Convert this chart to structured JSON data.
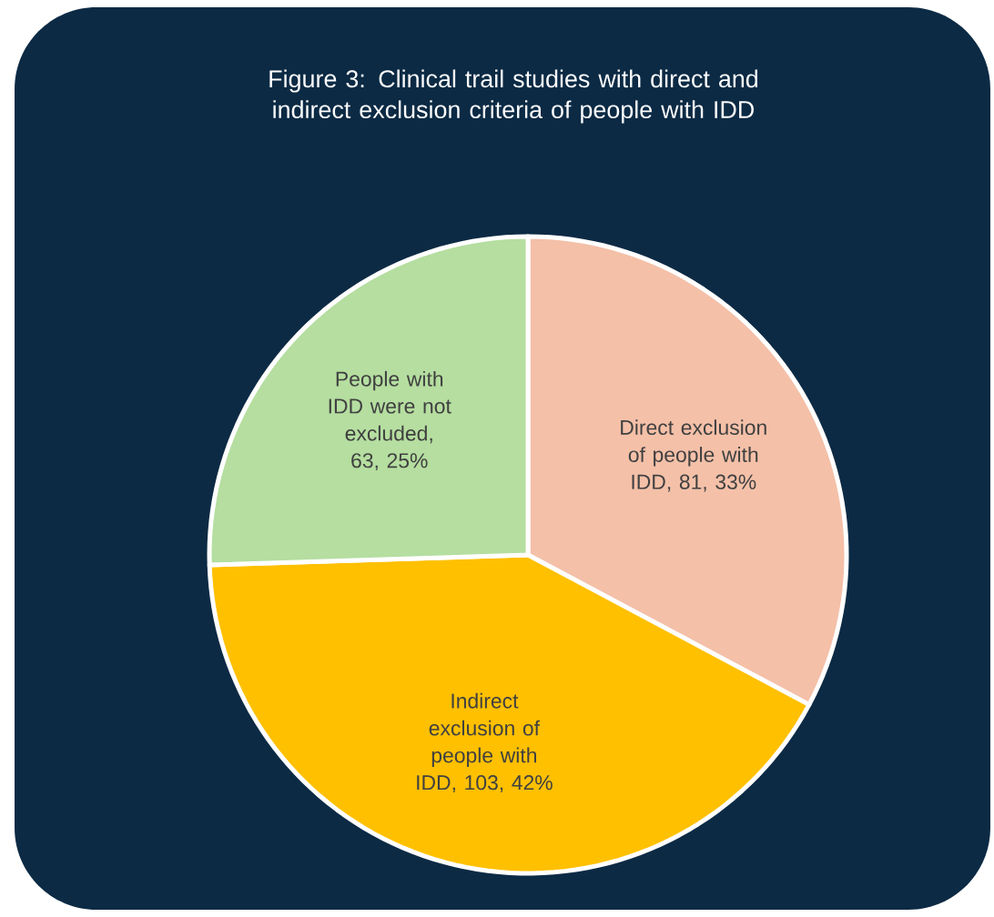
{
  "chart_data": {
    "type": "pie",
    "title": "Figure 3: Clinical trail studies with direct and indirect exclusion criteria of people with IDD",
    "categories": [
      "Direct exclusion of people with IDD",
      "Indirect exclusion of people with IDD",
      "People with IDD were not excluded"
    ],
    "values": [
      81,
      103,
      63
    ],
    "value_labels": [
      ", 81, 33%",
      ", 103, 42%",
      ", 63, 25%"
    ],
    "colors": [
      "#f4c0a8",
      "#ffc000",
      "#b5dea0"
    ]
  }
}
